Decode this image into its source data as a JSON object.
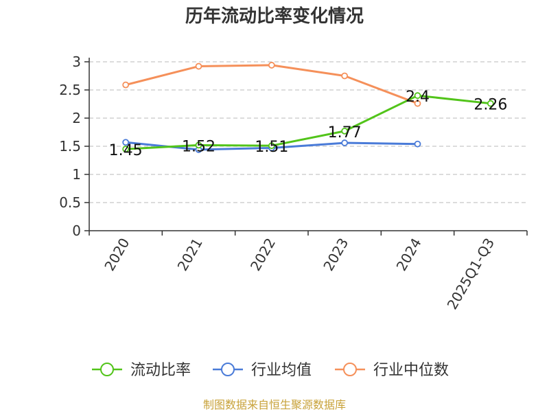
{
  "chart_data": {
    "type": "line",
    "title": "历年流动比率变化情况",
    "categories": [
      "2020",
      "2021",
      "2022",
      "2023",
      "2024",
      "2025Q1-Q3"
    ],
    "ylim": [
      0,
      3
    ],
    "yticks": [
      "0",
      "0.5",
      "1",
      "1.5",
      "2",
      "2.5",
      "3"
    ],
    "grid": true,
    "legend_position": "bottom",
    "series": [
      {
        "name": "流动比率",
        "color": "#52c41a",
        "values": [
          1.45,
          1.52,
          1.51,
          1.77,
          2.4,
          2.26
        ],
        "labels": [
          "1.45",
          "1.52",
          "1.51",
          "1.77",
          "2.4",
          "2.26"
        ]
      },
      {
        "name": "行业均值",
        "color": "#4a7bd8",
        "values": [
          1.57,
          1.44,
          1.47,
          1.56,
          1.54,
          null
        ]
      },
      {
        "name": "行业中位数",
        "color": "#f5905a",
        "values": [
          2.59,
          2.92,
          2.94,
          2.75,
          2.26,
          null
        ]
      }
    ]
  },
  "footer": {
    "source": "制图数据来自恒生聚源数据库"
  }
}
